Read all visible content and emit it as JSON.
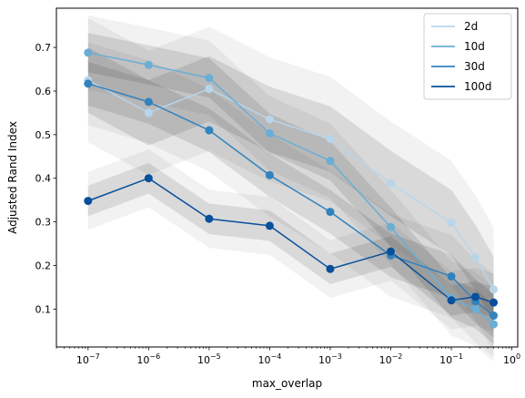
{
  "chart_data": {
    "type": "line",
    "x_scale": "log",
    "xlabel": "max_overlap",
    "ylabel": "Adjusted Rand Index",
    "xlim": [
      3e-08,
      1.25
    ],
    "ylim": [
      0.013,
      0.79
    ],
    "x_ticks": [
      {
        "value": 1e-07,
        "base": "10",
        "exp": "−7"
      },
      {
        "value": 1e-06,
        "base": "10",
        "exp": "−6"
      },
      {
        "value": 1e-05,
        "base": "10",
        "exp": "−5"
      },
      {
        "value": 0.0001,
        "base": "10",
        "exp": "−4"
      },
      {
        "value": 0.001,
        "base": "10",
        "exp": "−3"
      },
      {
        "value": 0.01,
        "base": "10",
        "exp": "−2"
      },
      {
        "value": 0.1,
        "base": "10",
        "exp": "−1"
      },
      {
        "value": 1,
        "base": "10",
        "exp": "0"
      }
    ],
    "y_ticks": [
      "0.1",
      "0.2",
      "0.3",
      "0.4",
      "0.5",
      "0.6",
      "0.7"
    ],
    "x": [
      1e-07,
      1e-06,
      1e-05,
      0.0001,
      0.001,
      0.01,
      0.1,
      0.25,
      0.5
    ],
    "series": [
      {
        "name": "2d",
        "color": "#b9d5ea",
        "values": [
          0.625,
          0.55,
          0.605,
          0.535,
          0.49,
          0.388,
          0.298,
          0.218,
          0.145
        ],
        "band": 0.075
      },
      {
        "name": "10d",
        "color": "#6aaed6",
        "values": [
          0.688,
          0.66,
          0.63,
          0.503,
          0.44,
          0.288,
          0.125,
          0.1,
          0.065
        ],
        "band": 0.045
      },
      {
        "name": "30d",
        "color": "#3282be",
        "values": [
          0.617,
          0.575,
          0.51,
          0.407,
          0.323,
          0.223,
          0.175,
          0.118,
          0.085
        ],
        "band": 0.05
      },
      {
        "name": "100d",
        "color": "#08509b",
        "values": [
          0.348,
          0.4,
          0.307,
          0.291,
          0.192,
          0.232,
          0.12,
          0.128,
          0.115
        ],
        "band": 0.035
      }
    ],
    "legend_position": "top-right",
    "grid": false
  }
}
